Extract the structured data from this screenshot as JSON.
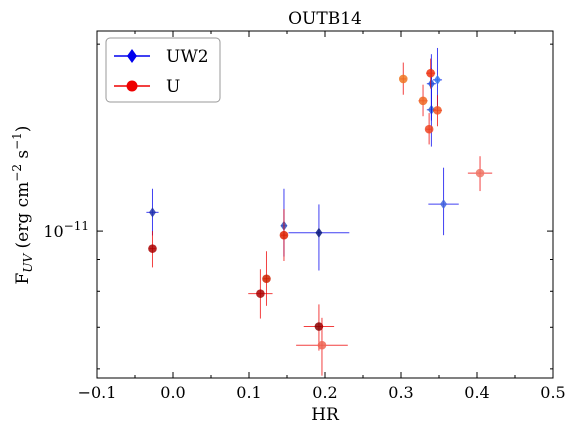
{
  "chart_data": {
    "type": "scatter",
    "title": "OUTB14",
    "xlabel": "HR",
    "ylabel_main": "F",
    "ylabel_sub": "UV",
    "ylabel_units": "(erg cm",
    "ylabel_exp1": "−2",
    "ylabel_mid": " s",
    "ylabel_exp2": "−1",
    "ylabel_end": ")",
    "xlim": [
      -0.1,
      0.5
    ],
    "ylim": [
      5.8e-12,
      2.1e-11
    ],
    "yscale": "log",
    "x_ticks": [
      -0.1,
      0.0,
      0.1,
      0.2,
      0.3,
      0.4,
      0.5
    ],
    "x_tick_labels": [
      "−0.1",
      "0.0",
      "0.1",
      "0.2",
      "0.3",
      "0.4",
      "0.5"
    ],
    "y_major_tick": 1e-11,
    "y_major_tick_label_base": "10",
    "y_major_tick_label_exp": "−11",
    "legend_position": "top-left",
    "series": [
      {
        "name": "UW2",
        "color": "#0000ee",
        "marker": "diamond",
        "points": [
          {
            "x": -0.027,
            "y": 1.072e-11,
            "xerr": 0.008,
            "yerr_lo": 8.8e-13,
            "yerr_hi": 9.8e-13,
            "shade": "#2233aa"
          },
          {
            "x": 0.146,
            "y": 1.02e-11,
            "xerr": 0.004,
            "yerr_lo": 1.1e-12,
            "yerr_hi": 1.5e-12,
            "shade": "#3355bb"
          },
          {
            "x": 0.192,
            "y": 9.94e-12,
            "xerr": 0.04,
            "yerr_lo": 1.3e-12,
            "yerr_hi": 1.1e-12,
            "shade": "#0a1a7a"
          },
          {
            "x": 0.34,
            "y": 1.568e-11,
            "xerr": 0.006,
            "yerr_lo": 2e-12,
            "yerr_hi": 2.6e-12,
            "shade": "#3366cc"
          },
          {
            "x": 0.34,
            "y": 1.727e-11,
            "xerr": 0.006,
            "yerr_lo": 2.2e-12,
            "yerr_hi": 2e-12,
            "shade": "#2255dd"
          },
          {
            "x": 0.348,
            "y": 1.752e-11,
            "xerr": 0.006,
            "yerr_lo": 2e-12,
            "yerr_hi": 2.2e-12,
            "shade": "#3377ee"
          },
          {
            "x": 0.356,
            "y": 1.105e-11,
            "xerr": 0.02,
            "yerr_lo": 1.2e-12,
            "yerr_hi": 1.6e-12,
            "shade": "#4466dd"
          }
        ]
      },
      {
        "name": "U",
        "color": "#ee0000",
        "marker": "circle",
        "points": [
          {
            "x": -0.027,
            "y": 9.37e-12,
            "xerr": 0.004,
            "yerr_lo": 6.3e-13,
            "yerr_hi": 6.3e-13,
            "shade": "#aa0000"
          },
          {
            "x": 0.115,
            "y": 7.93e-12,
            "xerr": 0.016,
            "yerr_lo": 7e-13,
            "yerr_hi": 7.5e-13,
            "shade": "#aa0000"
          },
          {
            "x": 0.123,
            "y": 8.38e-12,
            "xerr": 0.004,
            "yerr_lo": 8e-13,
            "yerr_hi": 9e-13,
            "shade": "#cc2200"
          },
          {
            "x": 0.146,
            "y": 9.85e-12,
            "xerr": 0.004,
            "yerr_lo": 9e-13,
            "yerr_hi": 1e-12,
            "shade": "#dd2200"
          },
          {
            "x": 0.192,
            "y": 7.02e-12,
            "xerr": 0.02,
            "yerr_lo": 6e-13,
            "yerr_hi": 6e-13,
            "shade": "#880000"
          },
          {
            "x": 0.196,
            "y": 6.55e-12,
            "xerr": 0.034,
            "yerr_lo": 7e-13,
            "yerr_hi": 7e-13,
            "shade": "#ee6655"
          },
          {
            "x": 0.303,
            "y": 1.758e-11,
            "xerr": 0.004,
            "yerr_lo": 1e-12,
            "yerr_hi": 1.1e-12,
            "shade": "#ee7722"
          },
          {
            "x": 0.329,
            "y": 1.621e-11,
            "xerr": 0.006,
            "yerr_lo": 9e-13,
            "yerr_hi": 1e-12,
            "shade": "#ee6622"
          },
          {
            "x": 0.337,
            "y": 1.459e-11,
            "xerr": 0.004,
            "yerr_lo": 8e-13,
            "yerr_hi": 9e-13,
            "shade": "#ee4422"
          },
          {
            "x": 0.339,
            "y": 1.796e-11,
            "xerr": 0.006,
            "yerr_lo": 1e-12,
            "yerr_hi": 1e-12,
            "shade": "#ee3311"
          },
          {
            "x": 0.348,
            "y": 1.565e-11,
            "xerr": 0.006,
            "yerr_lo": 9e-13,
            "yerr_hi": 9e-13,
            "shade": "#ee5522"
          },
          {
            "x": 0.404,
            "y": 1.24e-11,
            "xerr": 0.016,
            "yerr_lo": 8e-13,
            "yerr_hi": 8e-13,
            "shade": "#ee7766"
          }
        ]
      }
    ]
  }
}
